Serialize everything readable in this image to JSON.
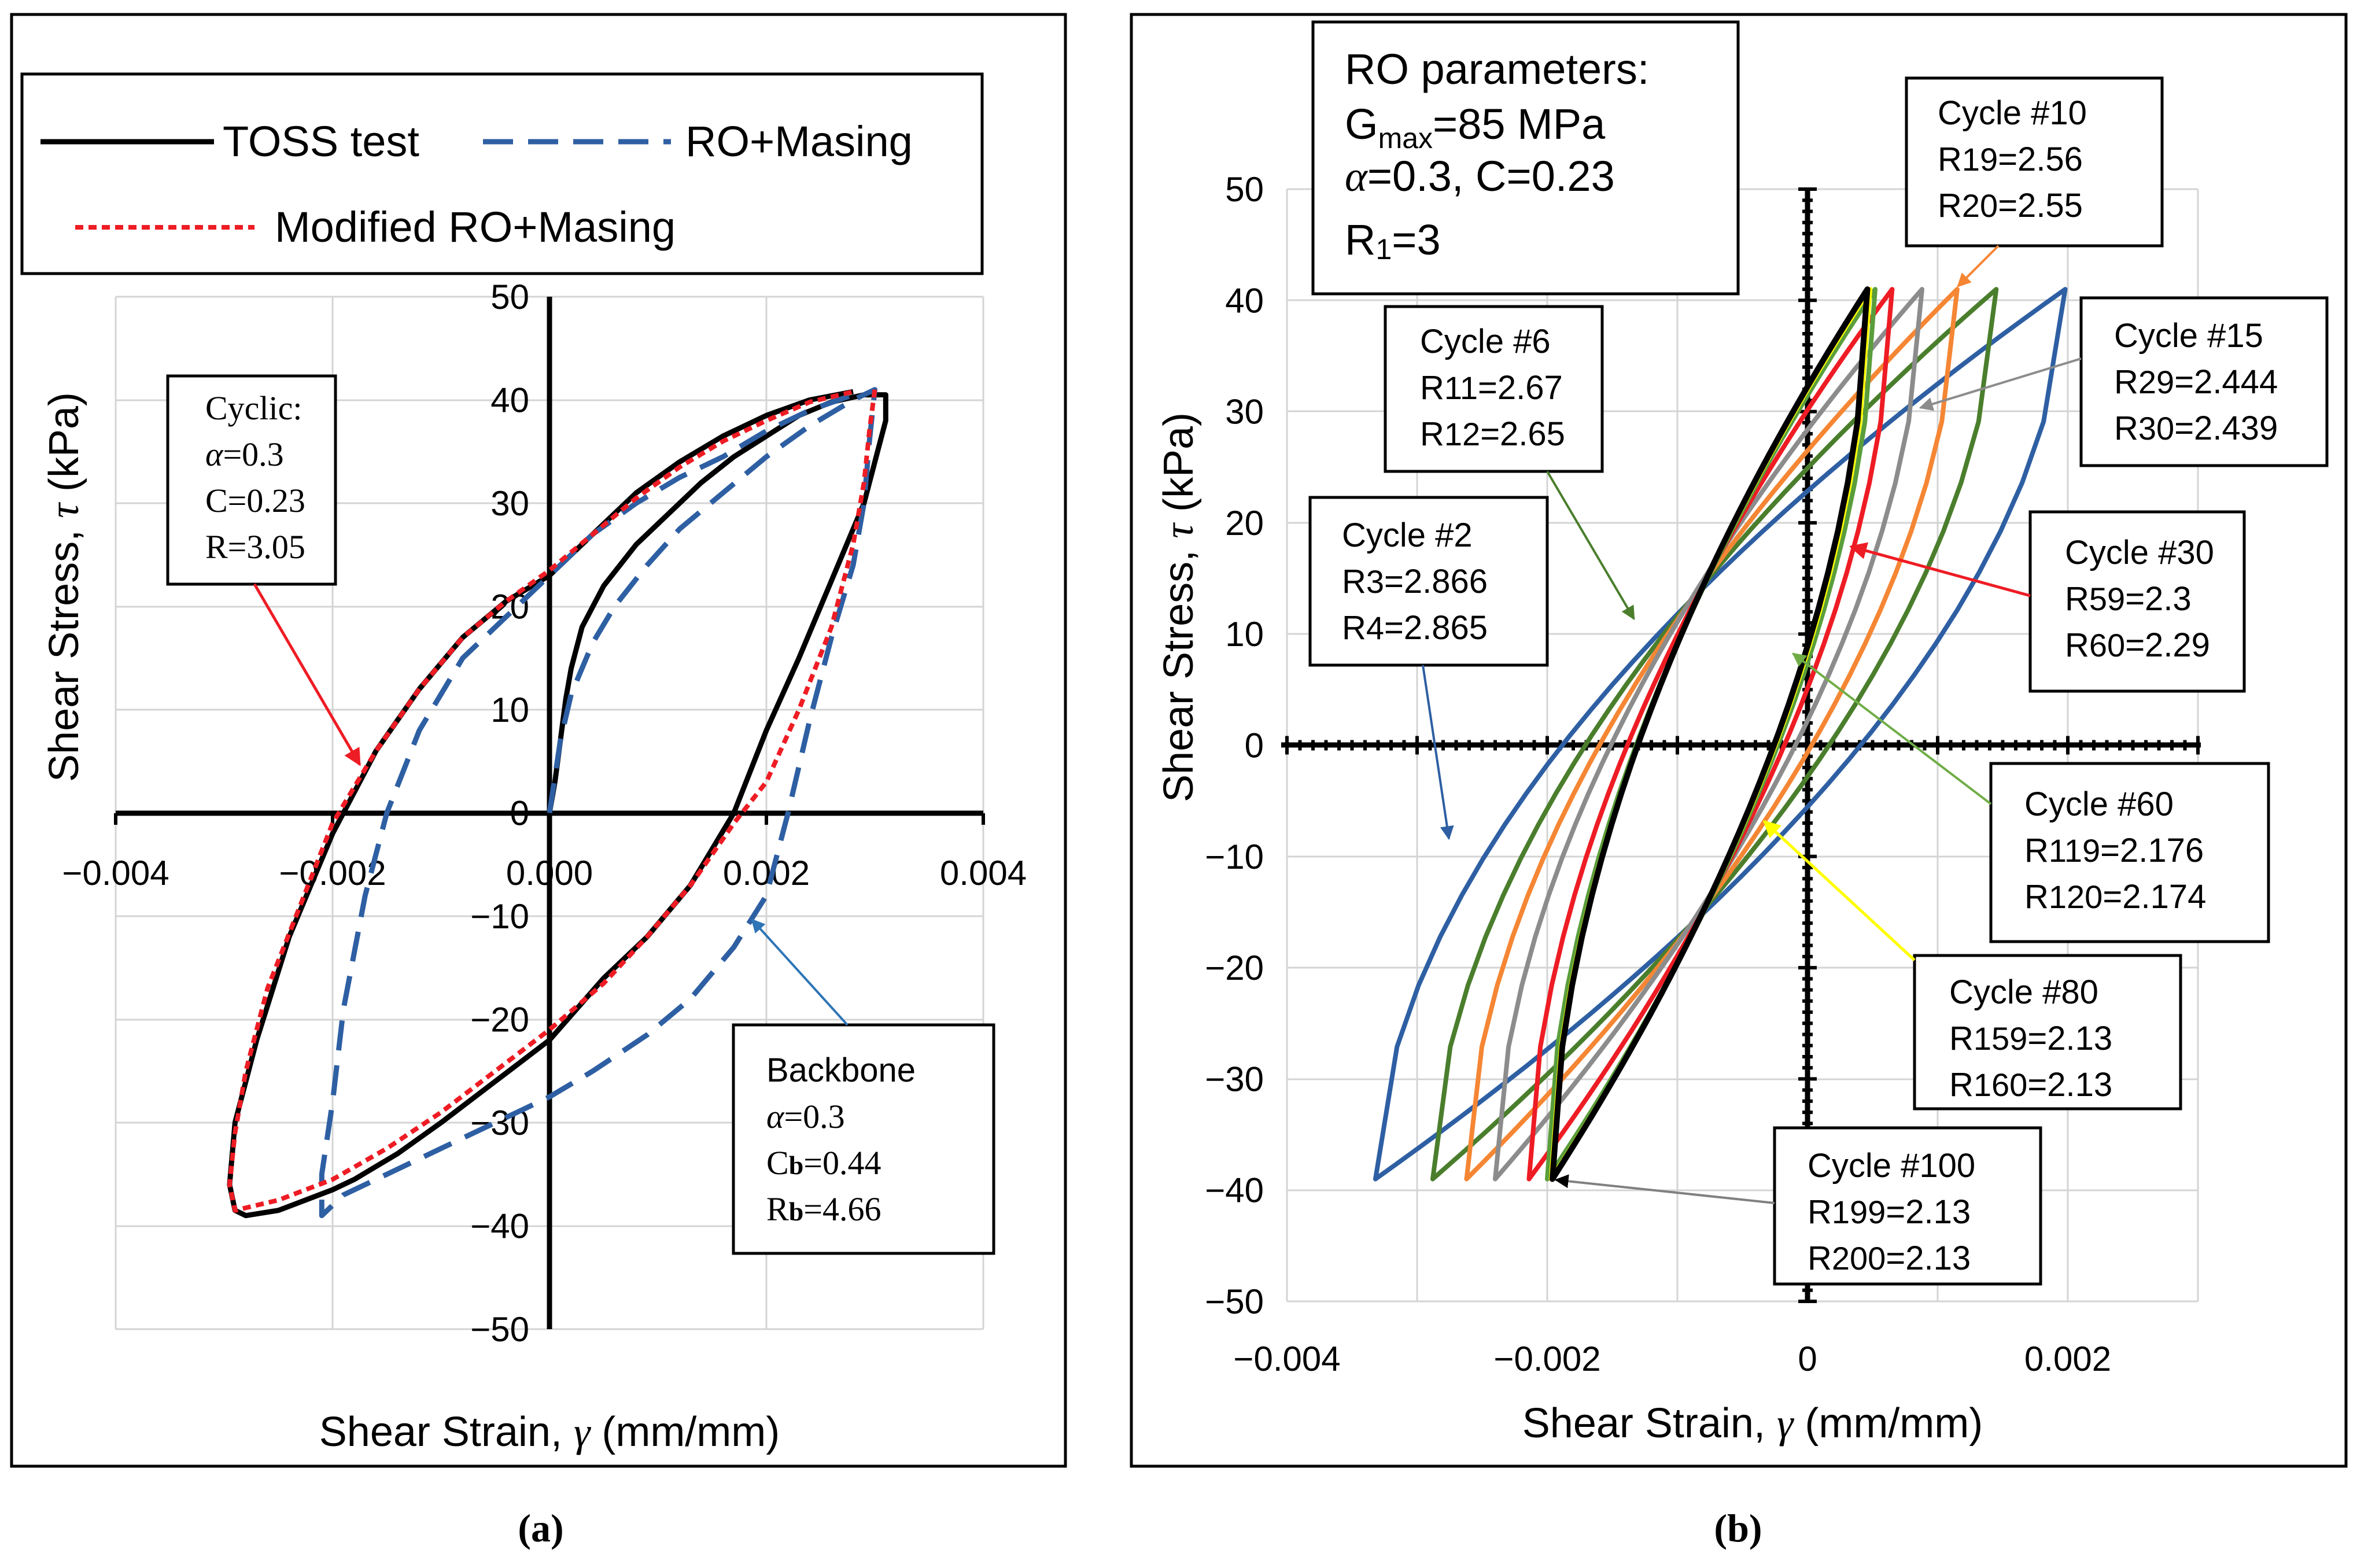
{
  "chart_data": [
    {
      "id": "a",
      "type": "line",
      "panel_label": "(a)",
      "caption_parts": [
        "(",
        "a",
        ")"
      ],
      "xlabel_parts": [
        "Shear Strain, ",
        "γ",
        " (mm/mm)"
      ],
      "ylabel_parts": [
        "Shear Stress, ",
        "τ",
        " (kPa)"
      ],
      "xlim": [
        -0.004,
        0.004
      ],
      "ylim": [
        -50,
        50
      ],
      "x_ticks": [
        -0.004,
        -0.002,
        0.0,
        0.002,
        0.004
      ],
      "x_tick_labels": [
        "−0.004",
        "−0.002",
        "0.000",
        "0.002",
        "0.004"
      ],
      "y_ticks": [
        -50,
        -40,
        -30,
        -20,
        -10,
        0,
        10,
        20,
        30,
        40,
        50
      ],
      "y_tick_labels": [
        "−50",
        "−40",
        "−30",
        "−20",
        "−10",
        "0",
        "10",
        "20",
        "30",
        "40",
        "50"
      ],
      "legend": [
        {
          "label": "TOSS test",
          "color": "#000000",
          "style": "solid"
        },
        {
          "label": "RO+Masing",
          "color": "#2e5fa3",
          "style": "dashed"
        },
        {
          "label": "Modified RO+Masing",
          "color": "#ee1c24",
          "style": "dotted"
        }
      ],
      "series": [
        {
          "name": "TOSS test",
          "color": "#000000",
          "style": "solid",
          "points": [
            [
              0.0,
              0
            ],
            [
              5e-05,
              3
            ],
            [
              0.0001,
              7
            ],
            [
              0.00015,
              11
            ],
            [
              0.0002,
              14
            ],
            [
              0.0003,
              18
            ],
            [
              0.0005,
              22
            ],
            [
              0.0008,
              26
            ],
            [
              0.0011,
              29
            ],
            [
              0.0014,
              32
            ],
            [
              0.0017,
              34.5
            ],
            [
              0.002,
              36.5
            ],
            [
              0.0023,
              38.5
            ],
            [
              0.0026,
              39.8
            ],
            [
              0.0029,
              40.5
            ],
            [
              0.0031,
              40.5
            ],
            [
              0.0031,
              38
            ],
            [
              0.003,
              34
            ],
            [
              0.0029,
              30
            ],
            [
              0.0027,
              25
            ],
            [
              0.0025,
              20
            ],
            [
              0.0023,
              15
            ],
            [
              0.002,
              8
            ],
            [
              0.0017,
              0
            ],
            [
              0.0013,
              -7
            ],
            [
              0.0009,
              -12
            ],
            [
              0.0005,
              -16
            ],
            [
              0.0,
              -22
            ],
            [
              -0.0005,
              -26
            ],
            [
              -0.001,
              -30
            ],
            [
              -0.0014,
              -33
            ],
            [
              -0.0018,
              -35.5
            ],
            [
              -0.002,
              -36.5
            ],
            [
              -0.0025,
              -38.5
            ],
            [
              -0.0028,
              -39
            ],
            [
              -0.0029,
              -38.5
            ],
            [
              -0.00295,
              -36
            ],
            [
              -0.0029,
              -30
            ],
            [
              -0.0027,
              -22
            ],
            [
              -0.0024,
              -12
            ],
            [
              -0.002,
              -2
            ],
            [
              -0.0016,
              6
            ],
            [
              -0.0012,
              12
            ],
            [
              -0.0008,
              17
            ],
            [
              -0.0004,
              20.5
            ],
            [
              0.0,
              23
            ],
            [
              0.0004,
              27
            ],
            [
              0.0008,
              31
            ],
            [
              0.0012,
              34
            ],
            [
              0.0016,
              36.5
            ],
            [
              0.002,
              38.5
            ],
            [
              0.0024,
              40
            ],
            [
              0.0028,
              40.8
            ]
          ]
        },
        {
          "name": "RO+Masing",
          "color": "#2e5fa3",
          "style": "dashed",
          "points": [
            [
              0.0,
              0
            ],
            [
              0.0001,
              7
            ],
            [
              0.0002,
              11.5
            ],
            [
              0.0004,
              16.5
            ],
            [
              0.0006,
              20
            ],
            [
              0.0009,
              24
            ],
            [
              0.0012,
              27.5
            ],
            [
              0.0016,
              31
            ],
            [
              0.002,
              34.5
            ],
            [
              0.0024,
              37.5
            ],
            [
              0.0028,
              40
            ],
            [
              0.003,
              41
            ],
            [
              0.00295,
              36
            ],
            [
              0.0029,
              30
            ],
            [
              0.0028,
              24
            ],
            [
              0.0026,
              17
            ],
            [
              0.0024,
              9
            ],
            [
              0.0022,
              0
            ],
            [
              0.002,
              -8
            ],
            [
              0.0017,
              -13
            ],
            [
              0.0013,
              -18
            ],
            [
              0.0009,
              -21.5
            ],
            [
              0.0004,
              -25
            ],
            [
              0.0,
              -27.5
            ],
            [
              -0.0005,
              -30
            ],
            [
              -0.001,
              -32.5
            ],
            [
              -0.0015,
              -35
            ],
            [
              -0.0019,
              -37
            ],
            [
              -0.0021,
              -39
            ],
            [
              -0.0021,
              -35
            ],
            [
              -0.002,
              -28
            ],
            [
              -0.0019,
              -19
            ],
            [
              -0.0017,
              -8
            ],
            [
              -0.0015,
              0
            ],
            [
              -0.0012,
              8
            ],
            [
              -0.0008,
              15
            ],
            [
              -0.0004,
              19
            ],
            [
              0.0,
              23
            ],
            [
              0.0004,
              27
            ],
            [
              0.0008,
              30
            ],
            [
              0.0012,
              32.5
            ],
            [
              0.0016,
              34.5
            ],
            [
              0.002,
              37
            ],
            [
              0.0024,
              39
            ],
            [
              0.0028,
              40.5
            ]
          ]
        },
        {
          "name": "Modified RO+Masing",
          "color": "#ee1c24",
          "style": "dotted",
          "points": [
            [
              0.003,
              41
            ],
            [
              0.00295,
              37
            ],
            [
              0.0029,
              32
            ],
            [
              0.0028,
              26
            ],
            [
              0.0026,
              18
            ],
            [
              0.0023,
              10
            ],
            [
              0.002,
              3
            ],
            [
              0.0017,
              -1
            ],
            [
              0.0013,
              -7
            ],
            [
              0.0009,
              -12
            ],
            [
              0.0005,
              -16.5
            ],
            [
              0.0,
              -21
            ],
            [
              -0.0005,
              -25
            ],
            [
              -0.001,
              -29
            ],
            [
              -0.0015,
              -32.5
            ],
            [
              -0.002,
              -35.5
            ],
            [
              -0.0025,
              -37.5
            ],
            [
              -0.0029,
              -38.5
            ],
            [
              -0.00295,
              -36
            ],
            [
              -0.0029,
              -31
            ],
            [
              -0.0028,
              -25
            ],
            [
              -0.0026,
              -17
            ],
            [
              -0.0023,
              -9
            ],
            [
              -0.002,
              -1
            ],
            [
              -0.0016,
              6
            ],
            [
              -0.0012,
              12
            ],
            [
              -0.0008,
              17
            ],
            [
              -0.0004,
              20.5
            ],
            [
              0.0,
              23.5
            ],
            [
              0.0004,
              27
            ],
            [
              0.0008,
              30.5
            ],
            [
              0.0012,
              33.5
            ],
            [
              0.0016,
              36
            ],
            [
              0.002,
              38
            ],
            [
              0.0024,
              39.8
            ],
            [
              0.0028,
              40.8
            ]
          ]
        }
      ],
      "annotations": [
        {
          "title": "Cyclic:",
          "lines": [
            [
              "α",
              "=0.3"
            ],
            [
              "C=0.23"
            ],
            [
              "R=3.05"
            ]
          ],
          "arrow_color": "#ee1c24"
        },
        {
          "title": "Backbone",
          "lines": [
            [
              "α",
              "=0.3"
            ],
            [
              "C",
              "b",
              "=0.44"
            ],
            [
              "R",
              "b",
              "=4.66"
            ]
          ],
          "arrow_color": "#2e75b6"
        }
      ]
    },
    {
      "id": "b",
      "type": "line",
      "panel_label": "(b)",
      "caption_parts": [
        "(",
        "b",
        ")"
      ],
      "xlabel_parts": [
        "Shear Strain, ",
        "γ",
        " (mm/mm)"
      ],
      "ylabel_parts": [
        "Shear Stress, ",
        "τ",
        " (kPa)"
      ],
      "xlim": [
        -0.004,
        0.003
      ],
      "ylim": [
        -50,
        50
      ],
      "x_ticks": [
        -0.004,
        -0.002,
        0,
        0.002
      ],
      "x_tick_labels": [
        "−0.004",
        "−0.002",
        "0",
        "0.002"
      ],
      "y_ticks": [
        -50,
        -40,
        -30,
        -20,
        -10,
        0,
        10,
        20,
        30,
        40,
        50
      ],
      "y_tick_labels": [
        "−50",
        "−40",
        "−30",
        "−20",
        "−10",
        "0",
        "10",
        "20",
        "30",
        "40",
        "50"
      ],
      "ro_parameters": {
        "title": "RO parameters:",
        "gmax": [
          "G",
          "max",
          "=85 MPa"
        ],
        "alpha_c": [
          "α",
          "=0.3, C=0.23"
        ],
        "r1": [
          "R",
          "1",
          "=3"
        ]
      },
      "loops": [
        {
          "cycle": 2,
          "color": "#2e5fa3",
          "xmin": -0.00332,
          "xmax": 0.00198
        },
        {
          "cycle": 6,
          "color": "#4a7e2c",
          "xmin": -0.00288,
          "xmax": 0.00145
        },
        {
          "cycle": 10,
          "color": "#f58634",
          "xmin": -0.00262,
          "xmax": 0.00115
        },
        {
          "cycle": 15,
          "color": "#8c8c8c",
          "xmin": -0.0024,
          "xmax": 0.00088
        },
        {
          "cycle": 30,
          "color": "#ee1c24",
          "xmin": -0.00214,
          "xmax": 0.00065
        },
        {
          "cycle": 60,
          "color": "#5a9e3c",
          "xmin": -0.002,
          "xmax": 0.00052
        },
        {
          "cycle": 80,
          "color": "#ffff00",
          "xmin": -0.00197,
          "xmax": 0.00048
        },
        {
          "cycle": 100,
          "color": "#000000",
          "xmin": -0.00196,
          "xmax": 0.00046
        }
      ],
      "annotations": [
        {
          "title": "Cycle #10",
          "lines": [
            [
              "R",
              "19",
              "=2.56"
            ],
            [
              "R",
              "20",
              "=2.55"
            ]
          ],
          "arrow_color": "#f58634"
        },
        {
          "title": "Cycle #6",
          "lines": [
            [
              "R",
              "11",
              "=2.67"
            ],
            [
              "R",
              "12",
              "=2.65"
            ]
          ],
          "arrow_color": "#4a7e2c"
        },
        {
          "title": "Cycle #15",
          "lines": [
            [
              "R",
              "29",
              "=2.444"
            ],
            [
              "R",
              "30",
              "=2.439"
            ]
          ],
          "arrow_color": "#8c8c8c"
        },
        {
          "title": "Cycle #2",
          "lines": [
            [
              "R",
              "3",
              "=2.866"
            ],
            [
              "R",
              "4",
              "=2.865"
            ]
          ],
          "arrow_color": "#2e5fa3"
        },
        {
          "title": "Cycle #30",
          "lines": [
            [
              "R",
              "59",
              "=2.3"
            ],
            [
              "R",
              "60",
              "=2.29"
            ]
          ],
          "arrow_color": "#ee1c24"
        },
        {
          "title": "Cycle #60",
          "lines": [
            [
              "R",
              "119",
              "=2.176"
            ],
            [
              "R",
              "120",
              "=2.174"
            ]
          ],
          "arrow_color": "#70ad47"
        },
        {
          "title": "Cycle #80",
          "lines": [
            [
              "R",
              "159",
              "=2.13"
            ],
            [
              "R",
              "160",
              "=2.13"
            ]
          ],
          "arrow_color": "#ffff00"
        },
        {
          "title": "Cycle #100",
          "lines": [
            [
              "R",
              "199",
              "=2.13"
            ],
            [
              "R",
              "200",
              "=2.13"
            ]
          ],
          "arrow_color": "#000000"
        }
      ]
    }
  ]
}
